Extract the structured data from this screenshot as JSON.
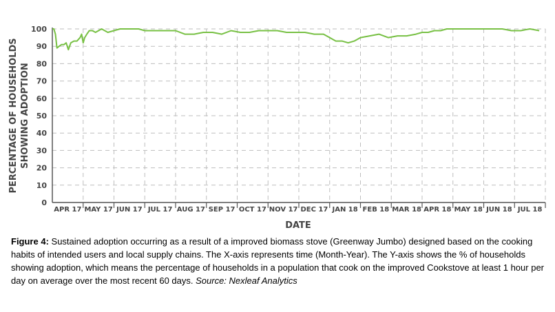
{
  "chart_data": {
    "type": "line",
    "xlabel": "DATE",
    "ylabel_line1": "PERCENTAGE OF HOUSEHOLDS",
    "ylabel_line2": "SHOWING ADOPTION",
    "ylim": [
      0,
      100
    ],
    "yticks": [
      0,
      10,
      20,
      30,
      40,
      50,
      60,
      70,
      80,
      90,
      100
    ],
    "categories": [
      "APR 17",
      "MAY 17",
      "JUN 17",
      "JUL 17",
      "AUG 17",
      "SEP 17",
      "OCT 17",
      "NOV 17",
      "DEC 17",
      "JAN 18",
      "FEB 18",
      "MAR 18",
      "APR 18",
      "MAY 18",
      "JUN 18",
      "JUL 18"
    ],
    "grid": "dashed-both",
    "line_color": "#77c043",
    "x": [
      0.0,
      0.05,
      0.1,
      0.15,
      0.22,
      0.3,
      0.38,
      0.45,
      0.52,
      0.6,
      0.7,
      0.8,
      0.9,
      0.95,
      1.0,
      1.05,
      1.12,
      1.2,
      1.3,
      1.4,
      1.5,
      1.6,
      1.7,
      1.8,
      2.0,
      2.2,
      2.4,
      2.6,
      2.8,
      3.0,
      3.3,
      3.6,
      4.0,
      4.3,
      4.6,
      4.9,
      5.2,
      5.5,
      5.8,
      6.1,
      6.4,
      6.7,
      7.0,
      7.3,
      7.6,
      7.9,
      8.2,
      8.5,
      8.8,
      9.0,
      9.2,
      9.4,
      9.6,
      9.8,
      10.0,
      10.3,
      10.6,
      10.9,
      11.2,
      11.5,
      11.8,
      12.0,
      12.2,
      12.4,
      12.6,
      12.8,
      13.0,
      13.3,
      13.6,
      14.0,
      14.3,
      14.6,
      14.9,
      15.2,
      15.5,
      15.8
    ],
    "values": [
      100,
      100,
      97,
      89,
      90,
      91,
      91,
      92,
      88,
      92,
      93,
      93,
      95,
      97,
      92,
      95,
      97,
      99,
      99,
      98,
      99,
      100,
      99,
      98,
      99,
      100,
      100,
      100,
      100,
      99,
      99,
      99,
      99,
      97,
      97,
      98,
      98,
      97,
      99,
      98,
      98,
      99,
      99,
      99,
      98,
      98,
      98,
      97,
      97,
      95,
      93,
      93,
      92,
      93,
      95,
      96,
      97,
      95,
      96,
      96,
      97,
      98,
      98,
      99,
      99,
      100,
      100,
      100,
      100,
      100,
      100,
      100,
      99,
      99,
      100,
      99
    ]
  },
  "caption": {
    "label": "Figure 4:",
    "text": " Sustained adoption occurring as a result of a improved biomass stove (Greenway Jumbo) designed based on the cooking habits of intended users and local supply chains.  The X-axis represents time (Month-Year). The Y-axis shows the % of households showing adoption, which means the percentage of households in a population that cook on the improved Cookstove at least 1 hour per day on average over the most recent 60 days. ",
    "source": "Source:  Nexleaf Analytics"
  }
}
